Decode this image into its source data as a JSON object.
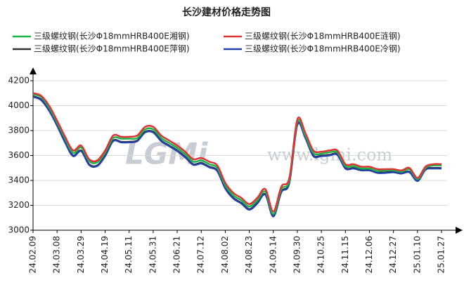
{
  "chart_data": {
    "type": "line",
    "title": "长沙建材价格走势图",
    "watermark": "www.lgmi.com",
    "logo": "LGMi",
    "categories": [
      "24.02.09",
      null,
      null,
      "24.03.08",
      null,
      null,
      "24.03.29",
      null,
      null,
      "24.04.19",
      null,
      null,
      "24.05.11",
      null,
      null,
      "24.05.31",
      null,
      null,
      "24.06.21",
      null,
      null,
      "24.07.12",
      null,
      null,
      "24.08.02",
      null,
      null,
      "24.08.23",
      null,
      null,
      "24.09.14",
      null,
      null,
      "24.09.30",
      null,
      null,
      "24.10.25",
      null,
      null,
      "24.11.15",
      null,
      null,
      "24.12.06",
      null,
      null,
      "24.12.27",
      null,
      null,
      "25.01.10",
      null,
      null,
      "25.01.27"
    ],
    "series": [
      {
        "name": "三级螺纹钢(长沙Φ18mmHRB400E湘钢)",
        "color": "#1fb24a",
        "values": [
          4090,
          4070,
          3985,
          3865,
          3735,
          3620,
          3665,
          3555,
          3545,
          3625,
          3740,
          3735,
          3735,
          3740,
          3810,
          3810,
          3740,
          3700,
          3660,
          3610,
          3550,
          3560,
          3530,
          3500,
          3360,
          3280,
          3240,
          3190,
          3240,
          3310,
          3130,
          3330,
          3400,
          3870,
          3760,
          3620,
          3615,
          3625,
          3625,
          3515,
          3515,
          3495,
          3495,
          3475,
          3480,
          3480,
          3470,
          3490,
          3410,
          3500,
          3520,
          3520
        ]
      },
      {
        "name": "三级螺纹钢(长沙Φ18mmHRB400E涟钢)",
        "color": "#e03434",
        "values": [
          4100,
          4080,
          4000,
          3880,
          3750,
          3640,
          3680,
          3570,
          3560,
          3640,
          3760,
          3750,
          3750,
          3760,
          3830,
          3830,
          3760,
          3720,
          3680,
          3630,
          3570,
          3580,
          3550,
          3520,
          3380,
          3300,
          3260,
          3210,
          3260,
          3330,
          3150,
          3350,
          3420,
          3890,
          3780,
          3640,
          3630,
          3640,
          3640,
          3530,
          3530,
          3510,
          3510,
          3490,
          3490,
          3490,
          3480,
          3500,
          3420,
          3510,
          3530,
          3530
        ]
      },
      {
        "name": "三级螺纹钢(长沙Φ18mmHRB400E萍钢)",
        "color": "#333333",
        "values": [
          4075,
          4050,
          3965,
          3845,
          3710,
          3600,
          3640,
          3530,
          3520,
          3600,
          3720,
          3710,
          3710,
          3720,
          3790,
          3790,
          3720,
          3680,
          3640,
          3590,
          3530,
          3540,
          3510,
          3480,
          3340,
          3260,
          3220,
          3170,
          3220,
          3290,
          3115,
          3310,
          3385,
          3850,
          3745,
          3600,
          3600,
          3605,
          3610,
          3500,
          3500,
          3485,
          3485,
          3465,
          3465,
          3470,
          3460,
          3470,
          3400,
          3490,
          3500,
          3500
        ]
      },
      {
        "name": "三级螺纹钢(长沙Φ18mmHRB400E冷钢)",
        "color": "#2342a8",
        "values": [
          4070,
          4045,
          3960,
          3840,
          3705,
          3595,
          3635,
          3525,
          3515,
          3595,
          3715,
          3705,
          3705,
          3715,
          3785,
          3785,
          3715,
          3675,
          3635,
          3585,
          3525,
          3535,
          3505,
          3475,
          3335,
          3255,
          3215,
          3165,
          3215,
          3285,
          3110,
          3305,
          3380,
          3845,
          3740,
          3595,
          3595,
          3600,
          3605,
          3495,
          3495,
          3480,
          3480,
          3460,
          3460,
          3465,
          3455,
          3465,
          3395,
          3485,
          3495,
          3495
        ]
      }
    ],
    "ylim": [
      3000,
      4200
    ],
    "yticks": [
      3000,
      3200,
      3400,
      3600,
      3800,
      4000,
      4200
    ],
    "grid": true
  }
}
